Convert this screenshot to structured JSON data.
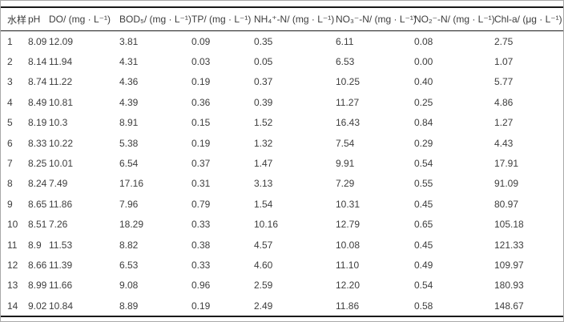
{
  "table": {
    "columns": [
      "水样",
      "pH",
      "DO/ (mg · L⁻¹)",
      "BOD₅/ (mg · L⁻¹)",
      "TP/ (mg · L⁻¹)",
      "NH₄⁺-N/ (mg · L⁻¹)",
      "NO₃⁻-N/ (mg · L⁻¹)",
      "NO₂⁻-N/ (mg · L⁻¹)",
      "Chl-a/ (μg · L⁻¹)"
    ],
    "rows": [
      [
        "1",
        "8.09",
        "12.09",
        "3.81",
        "0.09",
        "0.35",
        "6.11",
        "0.08",
        "2.75"
      ],
      [
        "2",
        "8.14",
        "11.94",
        "4.31",
        "0.03",
        "0.05",
        "6.53",
        "0.00",
        "1.07"
      ],
      [
        "3",
        "8.74",
        "11.22",
        "4.36",
        "0.19",
        "0.37",
        "10.25",
        "0.40",
        "5.77"
      ],
      [
        "4",
        "8.49",
        "10.81",
        "4.39",
        "0.36",
        "0.39",
        "11.27",
        "0.25",
        "4.86"
      ],
      [
        "5",
        "8.19",
        "10.3",
        "8.91",
        "0.15",
        "1.52",
        "16.43",
        "0.84",
        "1.27"
      ],
      [
        "6",
        "8.33",
        "10.22",
        "5.38",
        "0.19",
        "1.32",
        "7.54",
        "0.29",
        "4.43"
      ],
      [
        "7",
        "8.25",
        "10.01",
        "6.54",
        "0.37",
        "1.47",
        "9.91",
        "0.54",
        "17.91"
      ],
      [
        "8",
        "8.24",
        "7.49",
        "17.16",
        "0.31",
        "3.13",
        "7.29",
        "0.55",
        "91.09"
      ],
      [
        "9",
        "8.65",
        "11.86",
        "7.96",
        "0.79",
        "1.54",
        "10.31",
        "0.45",
        "80.97"
      ],
      [
        "10",
        "8.51",
        "7.26",
        "18.29",
        "0.33",
        "10.16",
        "12.79",
        "0.65",
        "105.18"
      ],
      [
        "11",
        "8.9",
        "11.53",
        "8.82",
        "0.38",
        "4.57",
        "10.08",
        "0.45",
        "121.33"
      ],
      [
        "12",
        "8.66",
        "11.39",
        "6.53",
        "0.33",
        "4.60",
        "11.10",
        "0.49",
        "109.97"
      ],
      [
        "13",
        "8.99",
        "11.66",
        "9.08",
        "0.96",
        "2.59",
        "12.20",
        "0.54",
        "180.93"
      ],
      [
        "14",
        "9.02",
        "10.84",
        "8.89",
        "0.19",
        "2.49",
        "11.86",
        "0.58",
        "148.67"
      ]
    ],
    "colors": {
      "rule": "#1a1a1a",
      "text": "#3d3d3d",
      "frame": "#a9a9a9"
    }
  }
}
